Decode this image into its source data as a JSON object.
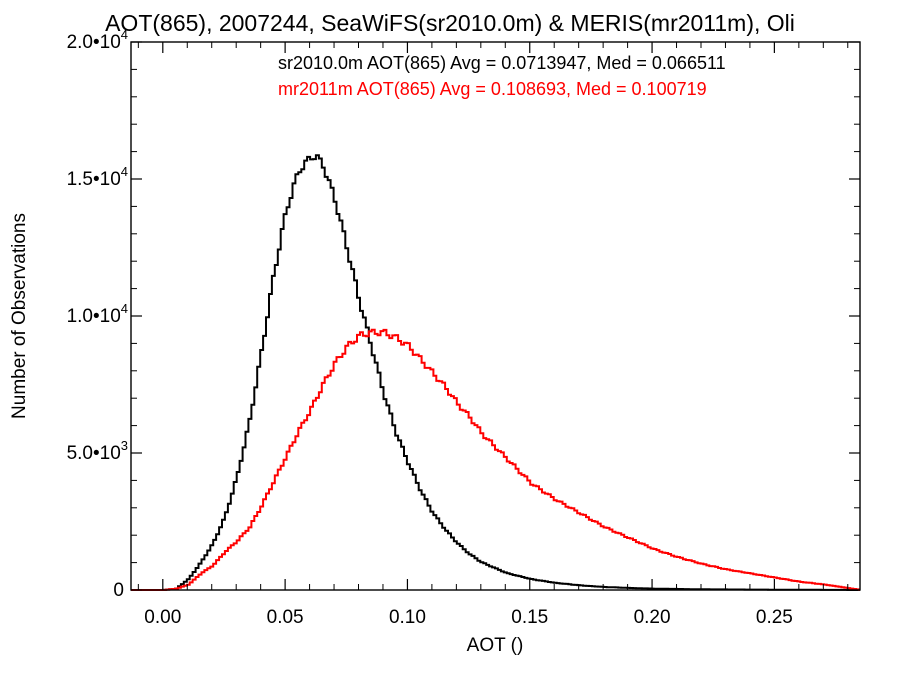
{
  "chart_data": {
    "type": "line",
    "title": "AOT(865), 2007244, SeaWiFS(sr2010.0m) & MERIS(mr2011m), Oli",
    "xlabel": "AOT ()",
    "ylabel": "Number of Observations",
    "xlim": [
      -0.013,
      0.285
    ],
    "ylim": [
      0,
      20000
    ],
    "x_ticks": [
      {
        "value": 0.0,
        "label": "0.00"
      },
      {
        "value": 0.05,
        "label": "0.05"
      },
      {
        "value": 0.1,
        "label": "0.10"
      },
      {
        "value": 0.15,
        "label": "0.15"
      },
      {
        "value": 0.2,
        "label": "0.20"
      },
      {
        "value": 0.25,
        "label": "0.25"
      }
    ],
    "y_ticks": [
      {
        "value": 0,
        "mantissa": "0",
        "exp": ""
      },
      {
        "value": 5000,
        "mantissa": "5.0•10",
        "exp": "3"
      },
      {
        "value": 10000,
        "mantissa": "1.0•10",
        "exp": "4"
      },
      {
        "value": 15000,
        "mantissa": "1.5•10",
        "exp": "4"
      },
      {
        "value": 20000,
        "mantissa": "2.0•10",
        "exp": "4"
      }
    ],
    "legend_placement": "top-right",
    "grid": false,
    "series": [
      {
        "name": "sr2010.0m",
        "legend": "sr2010.0m AOT(865) Avg = 0.0713947, Med = 0.066511",
        "color": "#000000",
        "x": [
          -0.013,
          0.0,
          0.005,
          0.01,
          0.015,
          0.02,
          0.025,
          0.03,
          0.035,
          0.04,
          0.045,
          0.05,
          0.055,
          0.06,
          0.062,
          0.065,
          0.07,
          0.075,
          0.08,
          0.085,
          0.09,
          0.095,
          0.1,
          0.105,
          0.11,
          0.115,
          0.12,
          0.125,
          0.13,
          0.14,
          0.15,
          0.16,
          0.17,
          0.18,
          0.19,
          0.2,
          0.22,
          0.24,
          0.26,
          0.285
        ],
        "y": [
          0,
          0,
          50,
          400,
          1000,
          1700,
          2700,
          4200,
          6200,
          8800,
          11600,
          13900,
          15300,
          15800,
          15850,
          15500,
          14200,
          12400,
          10500,
          8800,
          7100,
          5700,
          4600,
          3600,
          2800,
          2200,
          1700,
          1300,
          1000,
          620,
          400,
          260,
          170,
          110,
          75,
          50,
          25,
          15,
          8,
          0
        ]
      },
      {
        "name": "mr2011m",
        "legend": "mr2011m AOT(865) Avg = 0.108693, Med = 0.100719",
        "color": "#ff0000",
        "x": [
          -0.013,
          0.0,
          0.005,
          0.01,
          0.015,
          0.02,
          0.025,
          0.03,
          0.035,
          0.04,
          0.045,
          0.05,
          0.055,
          0.06,
          0.065,
          0.07,
          0.075,
          0.08,
          0.085,
          0.09,
          0.095,
          0.1,
          0.105,
          0.11,
          0.115,
          0.12,
          0.125,
          0.13,
          0.14,
          0.15,
          0.16,
          0.17,
          0.18,
          0.19,
          0.2,
          0.21,
          0.22,
          0.23,
          0.24,
          0.25,
          0.26,
          0.27,
          0.285
        ],
        "y": [
          0,
          0,
          50,
          200,
          600,
          900,
          1400,
          1800,
          2300,
          3100,
          4000,
          4900,
          5800,
          6600,
          7500,
          8300,
          8900,
          9300,
          9400,
          9400,
          9200,
          8900,
          8400,
          7900,
          7400,
          6800,
          6300,
          5700,
          4800,
          3900,
          3300,
          2800,
          2300,
          1900,
          1500,
          1200,
          950,
          750,
          600,
          450,
          300,
          200,
          0
        ]
      }
    ]
  }
}
